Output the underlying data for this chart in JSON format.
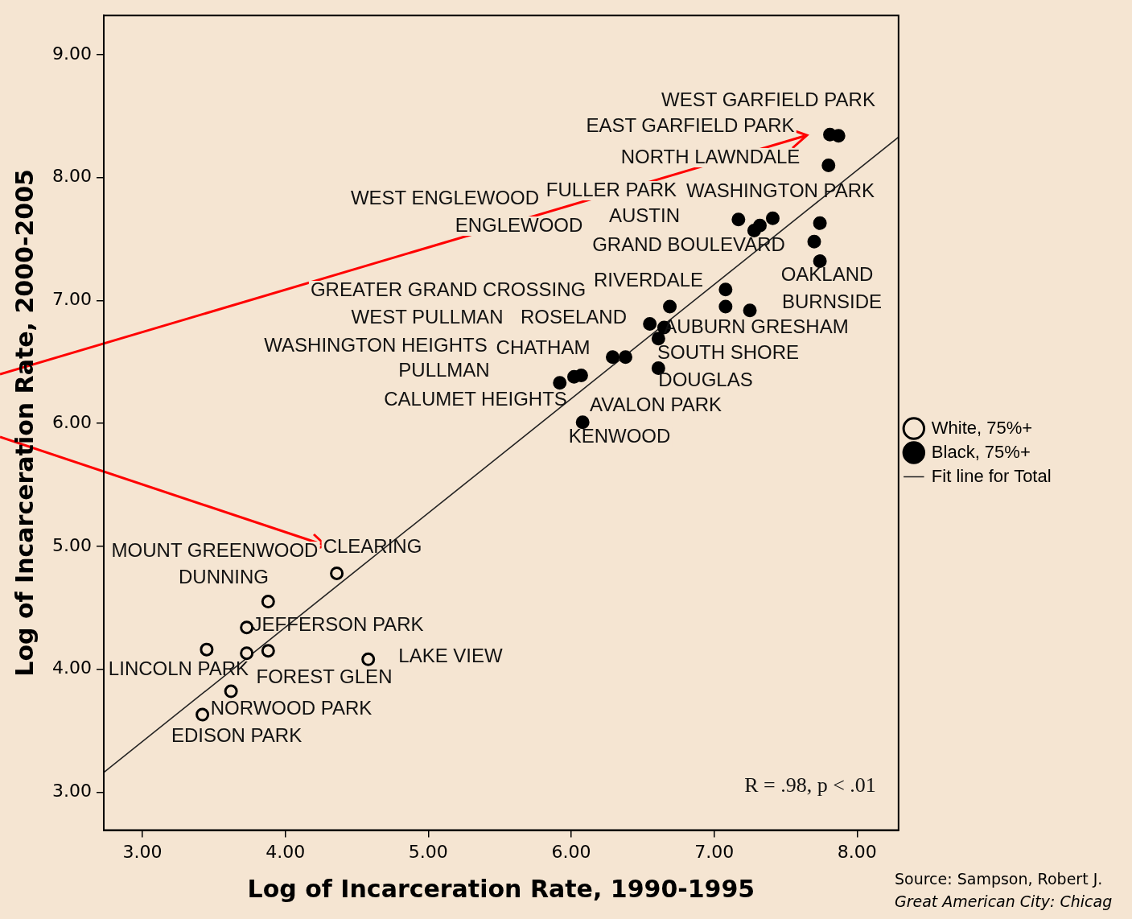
{
  "chart_data": {
    "type": "scatter",
    "xlabel": "Log of Incarceration Rate, 1990-1995",
    "ylabel": "Log of Incarceration Rate, 2000-2005",
    "xlim": [
      2.73,
      8.29
    ],
    "ylim": [
      2.69,
      9.32
    ],
    "xticks": [
      {
        "value": 3,
        "label": "3.00"
      },
      {
        "value": 4,
        "label": "4.00"
      },
      {
        "value": 5,
        "label": "5.00"
      },
      {
        "value": 6,
        "label": "6.00"
      },
      {
        "value": 7,
        "label": "7.00"
      },
      {
        "value": 8,
        "label": "8.00"
      }
    ],
    "yticks": [
      {
        "value": 3,
        "label": "3.00"
      },
      {
        "value": 4,
        "label": "4.00"
      },
      {
        "value": 5,
        "label": "5.00"
      },
      {
        "value": 6,
        "label": "6.00"
      },
      {
        "value": 7,
        "label": "7.00"
      },
      {
        "value": 8,
        "label": "8.00"
      },
      {
        "value": 9,
        "label": "9.00"
      }
    ],
    "grid": false,
    "legend": "right",
    "series": [
      {
        "name": "White, 75%+",
        "color": "#000000",
        "marker": "circle",
        "x": [
          4.36,
          3.88,
          3.73,
          3.45,
          3.73,
          3.88,
          4.58,
          3.62,
          3.42
        ],
        "values": [
          4.78,
          4.55,
          4.34,
          4.16,
          4.13,
          4.15,
          4.08,
          3.82,
          3.63
        ]
      },
      {
        "name": "Black, 75%+",
        "color": "#000000",
        "marker": "circle",
        "x": [
          7.81,
          7.87,
          7.8,
          7.17,
          7.28,
          7.32,
          7.41,
          7.74,
          7.7,
          7.74,
          7.08,
          6.69,
          7.08,
          7.25,
          6.55,
          6.65,
          6.61,
          6.29,
          6.38,
          6.61,
          5.92,
          6.02,
          6.07,
          6.08
        ],
        "values": [
          8.35,
          8.34,
          8.1,
          7.66,
          7.57,
          7.61,
          7.67,
          7.63,
          7.48,
          7.32,
          7.09,
          6.95,
          6.95,
          6.92,
          6.81,
          6.78,
          6.69,
          6.54,
          6.54,
          6.45,
          6.33,
          6.38,
          6.39,
          6.01
        ]
      },
      {
        "name": "Fit line for Total",
        "type": "line",
        "color": "#222222",
        "x": [
          2.73,
          8.29
        ],
        "values": [
          3.16,
          8.33
        ]
      }
    ],
    "annotations": [
      "WEST GARFIELD PARK",
      "EAST GARFIELD PARK",
      "NORTH LAWNDALE",
      "WEST ENGLEWOOD",
      "FULLER PARK",
      "WASHINGTON PARK",
      "AUSTIN",
      "ENGLEWOOD",
      "GRAND BOULEVARD",
      "OAKLAND",
      "BURNSIDE",
      "GREATER GRAND CROSSING",
      "RIVERDALE",
      "WEST PULLMAN",
      "ROSELAND",
      "AUBURN GRESHAM",
      "WASHINGTON HEIGHTS",
      "CHATHAM",
      "SOUTH SHORE",
      "PULLMAN",
      "DOUGLAS",
      "CALUMET HEIGHTS",
      "AVALON PARK",
      "KENWOOD",
      "MOUNT GREENWOOD",
      "CLEARING",
      "DUNNING",
      "JEFFERSON PARK",
      "LINCOLN PARK",
      "FOREST GLEN",
      "LAKE VIEW",
      "NORWOOD PARK",
      "EDISON PARK",
      "R = .98, p < .01",
      "Source: Sampson, Robert J.",
      "Great American City: Chicag"
    ]
  }
}
